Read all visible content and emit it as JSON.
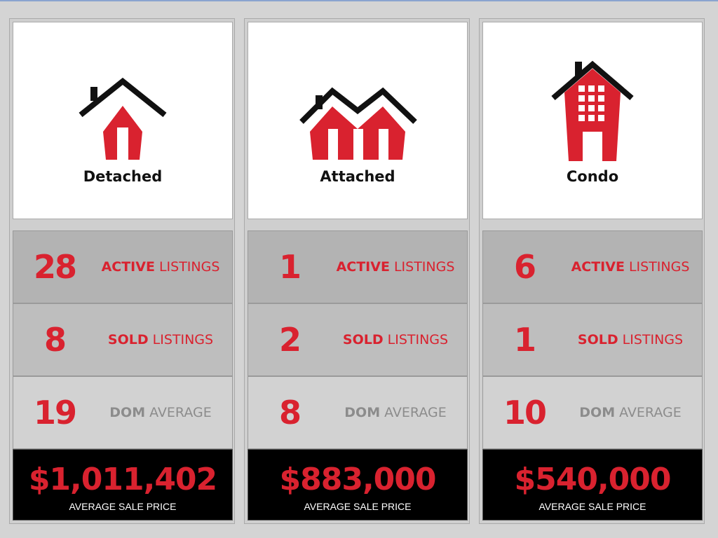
{
  "colors": {
    "accent": "#d9222f",
    "roof": "#111111",
    "muted": "#8c8c8c"
  },
  "columns": [
    {
      "type": "Detached",
      "icon": "detached-house-icon",
      "active": {
        "value": "28",
        "bold": "ACTIVE",
        "rest": "LISTINGS"
      },
      "sold": {
        "value": "8",
        "bold": "SOLD",
        "rest": "LISTINGS"
      },
      "dom": {
        "value": "19",
        "bold": "DOM",
        "rest": "AVERAGE"
      },
      "price": "$1,011,402",
      "price_label": "AVERAGE SALE PRICE"
    },
    {
      "type": "Attached",
      "icon": "attached-house-icon",
      "active": {
        "value": "1",
        "bold": "ACTIVE",
        "rest": "LISTINGS"
      },
      "sold": {
        "value": "2",
        "bold": "SOLD",
        "rest": "LISTINGS"
      },
      "dom": {
        "value": "8",
        "bold": "DOM",
        "rest": "AVERAGE"
      },
      "price": "$883,000",
      "price_label": "AVERAGE SALE PRICE"
    },
    {
      "type": "Condo",
      "icon": "condo-building-icon",
      "active": {
        "value": "6",
        "bold": "ACTIVE",
        "rest": "LISTINGS"
      },
      "sold": {
        "value": "1",
        "bold": "SOLD",
        "rest": "LISTINGS"
      },
      "dom": {
        "value": "10",
        "bold": "DOM",
        "rest": "AVERAGE"
      },
      "price": "$540,000",
      "price_label": "AVERAGE SALE PRICE"
    }
  ]
}
